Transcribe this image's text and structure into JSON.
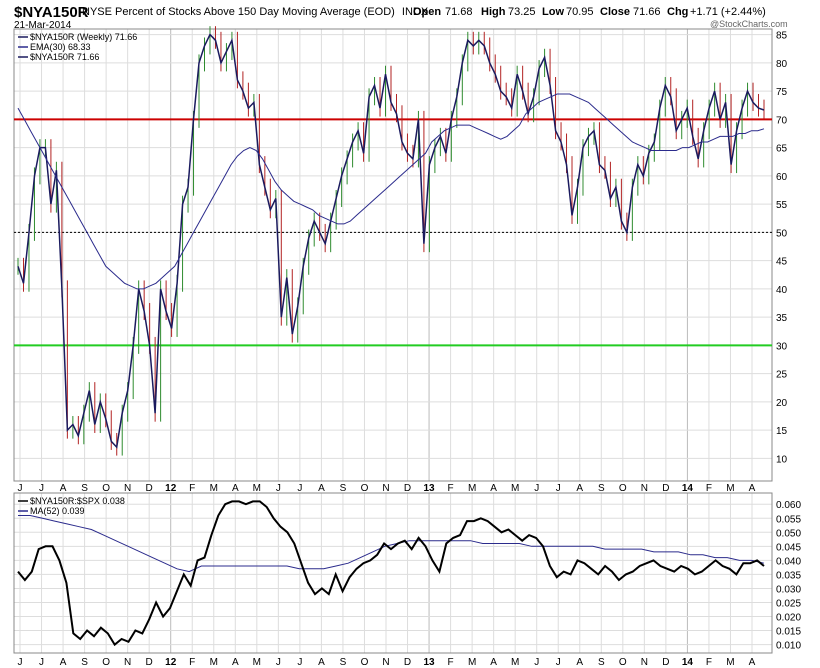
{
  "header": {
    "symbol": "$NYA150R",
    "description": "NYSE Percent of Stocks Above 150 Day Moving Average (EOD)",
    "exchange": "INDX",
    "date": "21-Mar-2014",
    "open_label": "Open",
    "open": "71.68",
    "high_label": "High",
    "high": "73.25",
    "low_label": "Low",
    "low": "70.95",
    "close_label": "Close",
    "close": "71.66",
    "chg_label": "Chg",
    "chg": "+1.71 (+2.44%)",
    "watermark": "@StockCharts.com"
  },
  "colors": {
    "price": "#1a1a5e",
    "ema": "#2b2b8c",
    "up_bar": "#2e8b2e",
    "down_bar": "#b22222",
    "red_line": "#cc0000",
    "green_line": "#22cc22",
    "ratio": "#000000",
    "ma": "#2b2b8c",
    "grid": "#dddddd"
  },
  "chart_data": [
    {
      "type": "line",
      "legend": [
        {
          "label": "$NYA150R (Weekly) 71.66",
          "color": "#1a1a5e"
        },
        {
          "label": "EMA(30) 68.33",
          "color": "#2b2b8c"
        },
        {
          "label": "$NYA150R 71.66",
          "color": "#1a1a5e"
        }
      ],
      "ylim": [
        6,
        86
      ],
      "yticks": [
        10,
        15,
        20,
        25,
        30,
        35,
        40,
        45,
        50,
        55,
        60,
        65,
        70,
        75,
        80,
        85
      ],
      "x_labels": [
        "J",
        "J",
        "A",
        "S",
        "O",
        "N",
        "D",
        "12",
        "F",
        "M",
        "A",
        "M",
        "J",
        "J",
        "A",
        "S",
        "O",
        "N",
        "D",
        "13",
        "F",
        "M",
        "A",
        "M",
        "J",
        "J",
        "A",
        "S",
        "O",
        "N",
        "D",
        "14",
        "F",
        "M",
        "A"
      ],
      "hlines": [
        {
          "value": 70,
          "style": "red"
        },
        {
          "value": 50,
          "style": "dotted"
        },
        {
          "value": 30,
          "style": "green"
        }
      ],
      "series": [
        {
          "name": "$NYA150R",
          "values": [
            44,
            41,
            50,
            60,
            65,
            65,
            55,
            61,
            40,
            15,
            16,
            14,
            18,
            22,
            16,
            20,
            17,
            13,
            12,
            18,
            22,
            30,
            40,
            36,
            30,
            18,
            40,
            36,
            33,
            41,
            55,
            58,
            70,
            80,
            83,
            85,
            84,
            80,
            82,
            84,
            77,
            75,
            72,
            73,
            62,
            58,
            54,
            56,
            35,
            42,
            32,
            37,
            44,
            49,
            52,
            50,
            48,
            52,
            56,
            60,
            63,
            66,
            68,
            64,
            74,
            76,
            72,
            78,
            73,
            71,
            66,
            64,
            63,
            70,
            48,
            62,
            65,
            67,
            64,
            70,
            74,
            80,
            84,
            83,
            84,
            83,
            80,
            78,
            75,
            74,
            72,
            78,
            75,
            71,
            74,
            79,
            81,
            76,
            68,
            66,
            62,
            53,
            58,
            65,
            67,
            68,
            62,
            61,
            56,
            58,
            52,
            50,
            58,
            62,
            60,
            64,
            66,
            72,
            76,
            74,
            68,
            70,
            72,
            67,
            63,
            68,
            72,
            75,
            70,
            73,
            62,
            68,
            72,
            75,
            73,
            72,
            71.66
          ]
        },
        {
          "name": "EMA(30)",
          "values": [
            72,
            70,
            68,
            66,
            64,
            62,
            60,
            58,
            56,
            54,
            52,
            50,
            48,
            46,
            44,
            43,
            42,
            41,
            40.5,
            40,
            40,
            40.5,
            41,
            42,
            43,
            44,
            46,
            48,
            50,
            52,
            54,
            56,
            58,
            60,
            62,
            63.5,
            64.5,
            65,
            64.5,
            63,
            61,
            59,
            57.5,
            56.5,
            55.5,
            55,
            54.5,
            54,
            53,
            52.5,
            52,
            51.5,
            51.5,
            52,
            53,
            54,
            55,
            56,
            57,
            58,
            59,
            60,
            61,
            62,
            63,
            64,
            66,
            67,
            68,
            68.5,
            69,
            69,
            69,
            68.5,
            68,
            67.5,
            67,
            66.5,
            67,
            68,
            69,
            71,
            72,
            73,
            73.5,
            74,
            74.5,
            74.5,
            74.5,
            74,
            73.5,
            73,
            72,
            71,
            70,
            69,
            68,
            67,
            66,
            65.5,
            65,
            64.5,
            64.5,
            64.5,
            64.5,
            64.5,
            65,
            65,
            65.5,
            66,
            66,
            66.5,
            67,
            67,
            67,
            67.5,
            67.5,
            68,
            68,
            68.33
          ]
        }
      ]
    },
    {
      "type": "line",
      "legend": [
        {
          "label": "$NYA150R:$SPX 0.038",
          "color": "#000000"
        },
        {
          "label": "MA(52) 0.039",
          "color": "#2b2b8c"
        }
      ],
      "ylim": [
        0.007,
        0.064
      ],
      "yticks": [
        0.01,
        0.015,
        0.02,
        0.025,
        0.03,
        0.035,
        0.04,
        0.045,
        0.05,
        0.055,
        0.06
      ],
      "x_labels": [
        "J",
        "J",
        "A",
        "S",
        "O",
        "N",
        "D",
        "12",
        "F",
        "M",
        "A",
        "M",
        "J",
        "J",
        "A",
        "S",
        "O",
        "N",
        "D",
        "13",
        "F",
        "M",
        "A",
        "M",
        "J",
        "J",
        "A",
        "S",
        "O",
        "N",
        "D",
        "14",
        "F",
        "M",
        "A"
      ],
      "series": [
        {
          "name": "$NYA150R:$SPX",
          "values": [
            0.036,
            0.033,
            0.036,
            0.044,
            0.045,
            0.045,
            0.04,
            0.032,
            0.014,
            0.012,
            0.015,
            0.013,
            0.016,
            0.014,
            0.01,
            0.012,
            0.011,
            0.015,
            0.014,
            0.019,
            0.025,
            0.02,
            0.023,
            0.029,
            0.035,
            0.031,
            0.04,
            0.041,
            0.049,
            0.056,
            0.06,
            0.061,
            0.061,
            0.06,
            0.061,
            0.061,
            0.059,
            0.055,
            0.052,
            0.05,
            0.046,
            0.039,
            0.032,
            0.028,
            0.03,
            0.028,
            0.035,
            0.029,
            0.034,
            0.037,
            0.039,
            0.04,
            0.042,
            0.046,
            0.044,
            0.046,
            0.047,
            0.044,
            0.048,
            0.045,
            0.04,
            0.036,
            0.046,
            0.048,
            0.049,
            0.054,
            0.054,
            0.055,
            0.054,
            0.052,
            0.05,
            0.051,
            0.049,
            0.047,
            0.049,
            0.048,
            0.045,
            0.038,
            0.034,
            0.036,
            0.035,
            0.04,
            0.039,
            0.037,
            0.035,
            0.038,
            0.036,
            0.033,
            0.035,
            0.036,
            0.038,
            0.039,
            0.04,
            0.038,
            0.037,
            0.036,
            0.038,
            0.037,
            0.035,
            0.036,
            0.038,
            0.04,
            0.038,
            0.037,
            0.035,
            0.039,
            0.039,
            0.04,
            0.038
          ]
        },
        {
          "name": "MA(52)",
          "values": [
            0.056,
            0.056,
            0.055,
            0.054,
            0.053,
            0.052,
            0.051,
            0.049,
            0.047,
            0.045,
            0.043,
            0.041,
            0.039,
            0.037,
            0.036,
            0.038,
            0.038,
            0.038,
            0.038,
            0.038,
            0.038,
            0.038,
            0.038,
            0.037,
            0.037,
            0.037,
            0.038,
            0.039,
            0.041,
            0.043,
            0.045,
            0.046,
            0.047,
            0.047,
            0.047,
            0.047,
            0.047,
            0.047,
            0.046,
            0.046,
            0.046,
            0.046,
            0.045,
            0.045,
            0.045,
            0.045,
            0.045,
            0.045,
            0.044,
            0.044,
            0.044,
            0.044,
            0.043,
            0.043,
            0.043,
            0.042,
            0.042,
            0.041,
            0.041,
            0.04,
            0.04,
            0.039
          ]
        }
      ]
    }
  ]
}
